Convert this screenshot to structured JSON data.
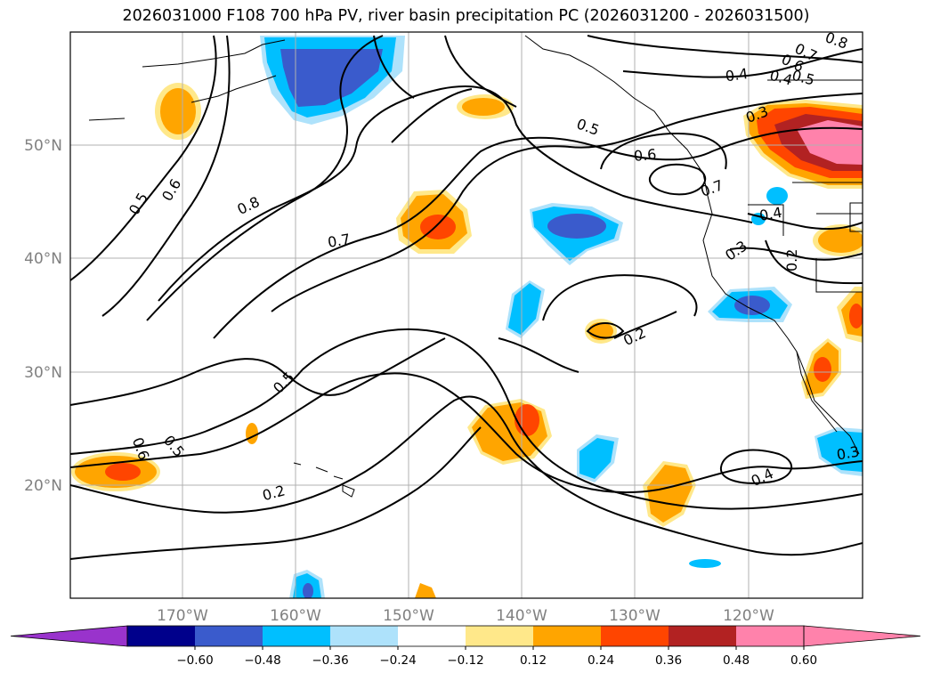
{
  "title": "2026031000 F108 700 hPa PV, river basin precipitation PC (2026031200 - 2026031500)",
  "map": {
    "region": "North Pacific",
    "lat_labels": [
      "50°N",
      "40°N",
      "30°N",
      "20°N"
    ],
    "lon_labels": [
      "170°W",
      "160°W",
      "150°W",
      "140°W",
      "130°W",
      "120°W"
    ]
  },
  "contour_labels": [
    "0.8",
    "0.7",
    "0.6",
    "0.5",
    "0.5",
    "0.4",
    "0.5",
    "0.6",
    "0.7",
    "0.6",
    "0.5",
    "0.4",
    "0.3",
    "0.2",
    "0.2",
    "0.4",
    "0.3",
    "0.2",
    "0.5",
    "0.6",
    "0.8",
    "0.7",
    "0.4",
    "0.3"
  ],
  "colorbar": {
    "ticks": [
      "−0.60",
      "−0.48",
      "−0.36",
      "−0.24",
      "−0.12",
      "0.12",
      "0.24",
      "0.36",
      "0.48",
      "0.60"
    ],
    "colors": [
      "#9933cc",
      "#00008b",
      "#3a5bcc",
      "#00bfff",
      "#aee2fb",
      "#ffffff",
      "#ffe88a",
      "#ffa500",
      "#ff4500",
      "#b22222",
      "#ff82ab",
      "#ff82ab"
    ]
  }
}
